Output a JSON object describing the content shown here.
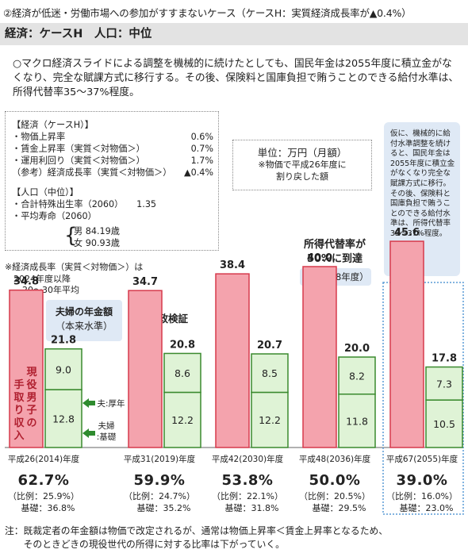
{
  "heading": "②経済が低迷・労働市場への参加がすすまないケース（ケースH：実質経済成長率が▲0.4%）",
  "subheading": "経済：ケースH　人口：中位",
  "intro": "○マクロ経済スライドによる調整を機械的に続けたとしても、国民年金は2055年度に積立金がなくなり、完全な賦課方式に移行する。その後、保険料と国庫負担で賄うことのできる給付水準は、所得代替率35～37%程度。",
  "assumptions": {
    "econ_title": "【経済（ケースH）】",
    "econ_rows": [
      {
        "label": "・物価上昇率",
        "value": "0.6%"
      },
      {
        "label": "・賃金上昇率（実質＜対物価＞）",
        "value": "0.7%"
      },
      {
        "label": "・運用利回り（実質＜対物価＞）",
        "value": "1.7%"
      },
      {
        "label": "（参考）経済成長率（実質＜対物価＞）",
        "value": "▲0.4%"
      }
    ],
    "pop_title": "【人口（中位）】",
    "pop_rows": [
      {
        "label": "・合計特殊出生率（2060）",
        "value": "1.35"
      },
      {
        "label": "・平均寿命（2060）",
        "value": ""
      }
    ],
    "life_male": "男 84.19歳",
    "life_female": "女 90.93歳"
  },
  "unit": {
    "title": "単位：万円（月額）",
    "note1": "※物価で平成26年度に",
    "note2": "割り戻した額"
  },
  "note_growth": [
    "※経済成長率（実質＜対物価＞）は",
    "　2024年度以降",
    "　　20～30年平均"
  ],
  "callout_2055": "仮に、機械的に給付水準調整を続けると、国民年金は2055年度に積立金がなくなり完全な賦課方式に移行。その後、保険料と国庫負担で賄うことのできる給付水準は、所得代替率35～37%程度。",
  "target": {
    "line1": "所得代替率が",
    "line2": "50%に到達",
    "sub": "（平成48年度）"
  },
  "pension_label": {
    "line1": "夫婦の年金額",
    "line2": "（本来水準）"
  },
  "review_label": "次の財政検証",
  "labels": {
    "wage_bar": "現役男子の手取り収入",
    "hus": "夫:厚年",
    "wife1": "夫婦",
    "wife2": ":基礎"
  },
  "chart_data": {
    "type": "bar",
    "categories": [
      "平成26(2014)年度",
      "平成31(2019)年度",
      "平成42(2030)年度",
      "平成48(2036)年度",
      "平成67(2055)年度"
    ],
    "series": [
      {
        "name": "現役男子の手取り収入",
        "values": [
          34.8,
          34.7,
          38.4,
          40.0,
          45.6
        ],
        "color": "#f4a3ad",
        "stroke": "#d63a4c"
      },
      {
        "name": "夫婦の年金額（本来水準）",
        "values": [
          21.8,
          20.8,
          20.7,
          20.0,
          17.8
        ],
        "color": "#dff3d6",
        "stroke": "#3a8a2e",
        "parts": [
          {
            "name": "夫:厚年",
            "values": [
              9.0,
              8.6,
              8.5,
              8.2,
              7.3
            ]
          },
          {
            "name": "夫婦:基礎",
            "values": [
              12.8,
              12.2,
              12.2,
              11.8,
              10.5
            ]
          }
        ]
      }
    ],
    "ylim": [
      0,
      50
    ],
    "replacement_rates": [
      {
        "main": "62.7%",
        "prop": "比例：25.9%",
        "basic": "基礎：36.8%"
      },
      {
        "main": "59.9%",
        "prop": "比例：24.7%",
        "basic": "基礎：35.2%"
      },
      {
        "main": "53.8%",
        "prop": "比例：22.1%",
        "basic": "基礎：31.8%"
      },
      {
        "main": "50.0%",
        "prop": "比例：20.5%",
        "basic": "基礎：29.5%"
      },
      {
        "main": "39.0%",
        "prop": "比例：16.0%",
        "basic": "基礎：23.0%"
      }
    ]
  },
  "footer": [
    "注：既裁定者の年金額は物価で改定されるが、通常は物価上昇率＜賃金上昇率となるため、",
    "　　そのときどきの現役世代の所得に対する比率は下がっていく。"
  ]
}
